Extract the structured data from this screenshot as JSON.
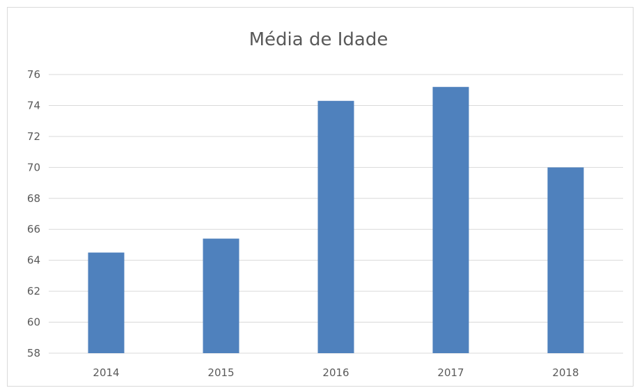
{
  "chart_data": {
    "type": "bar",
    "title": "Média de Idade",
    "categories": [
      "2014",
      "2015",
      "2016",
      "2017",
      "2018"
    ],
    "values": [
      64.5,
      65.4,
      74.3,
      75.2,
      70.0
    ],
    "ylim": [
      58,
      76
    ],
    "yticks": [
      "58",
      "60",
      "62",
      "64",
      "66",
      "68",
      "70",
      "72",
      "74",
      "76"
    ],
    "grid": true,
    "legend": "none",
    "colors": {
      "bar": "#4f81bd",
      "grid": "#d9d9d9",
      "text": "#595959"
    }
  }
}
